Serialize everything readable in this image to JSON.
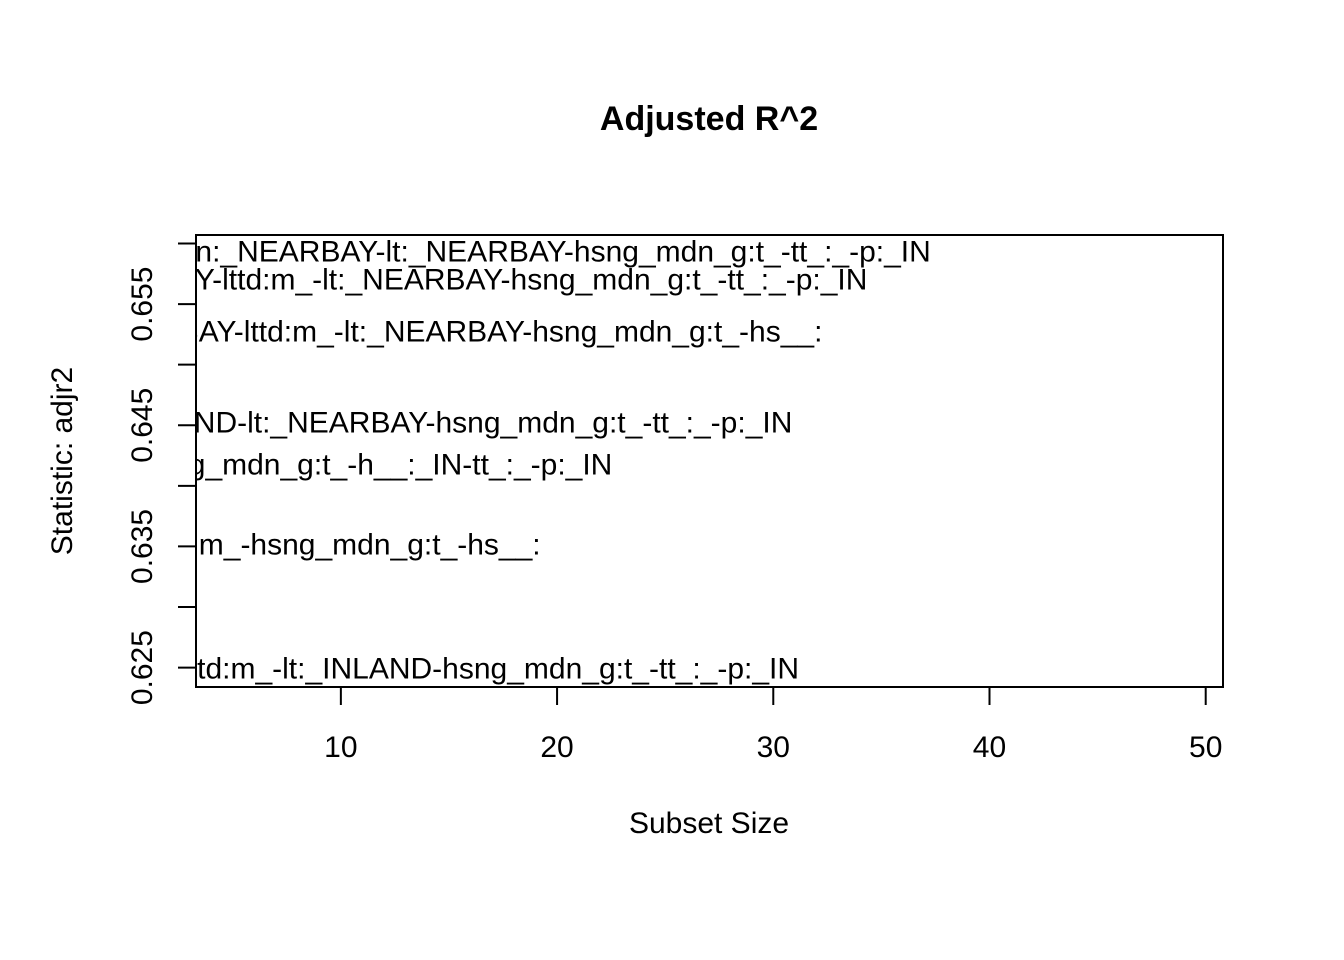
{
  "chart_data": {
    "type": "scatter",
    "title": "Adjusted R^2",
    "xlabel": "Subset Size",
    "ylabel": "Statistic: adjr2",
    "xlim": [
      3.3,
      50.8
    ],
    "ylim": [
      0.6234,
      0.6607
    ],
    "x_ticks": [
      10,
      20,
      30,
      40,
      50
    ],
    "x_tick_labels": [
      "10",
      "20",
      "30",
      "40",
      "50"
    ],
    "y_ticks": [
      0.625,
      0.63,
      0.635,
      0.64,
      0.645,
      0.65,
      0.655,
      0.66
    ],
    "y_tick_labels": [
      "0.625",
      "0.635",
      "0.645",
      "0.655"
    ],
    "y_tick_label_values": [
      0.625,
      0.635,
      0.645,
      0.655
    ],
    "grid": false,
    "legend": "none",
    "points": [
      {
        "label": "D-ln:_NEARBAY-lt:_NEARBAY-hsng_mdn_g:t_-tt_:_-p:_IN",
        "x": 1.5,
        "y": 0.6593,
        "size": 7
      },
      {
        "label": "BAY-lttd:m_-lt:_NEARBAY-hsng_mdn_g:t_-tt_:_-p:_IN",
        "x": 1.5,
        "y": 0.657,
        "size": 6
      },
      {
        "label": "RBAY-lttd:m_-lt:_NEARBAY-hsng_mdn_g:t_-hs__:",
        "x": 1.5,
        "y": 0.6527,
        "size": 5
      },
      {
        "label": "LAND-lt:_NEARBAY-hsng_mdn_g:t_-tt_:_-p:_IN",
        "x": 1.5,
        "y": 0.6452,
        "size": 4
      },
      {
        "label": "sng_mdn_g:t_-h__:_IN-tt_:_-p:_IN",
        "x": 1.5,
        "y": 0.6417,
        "size": 3
      },
      {
        "label": "ttd:m_-hsng_mdn_g:t_-hs__:",
        "x": 1.5,
        "y": 0.6351,
        "size": 2
      },
      {
        "label": "lngtd:m_-lt:_INLAND-hsng_mdn_g:t_-tt_:_-p:_IN",
        "x": 1.5,
        "y": 0.6249,
        "size": 1
      }
    ]
  }
}
